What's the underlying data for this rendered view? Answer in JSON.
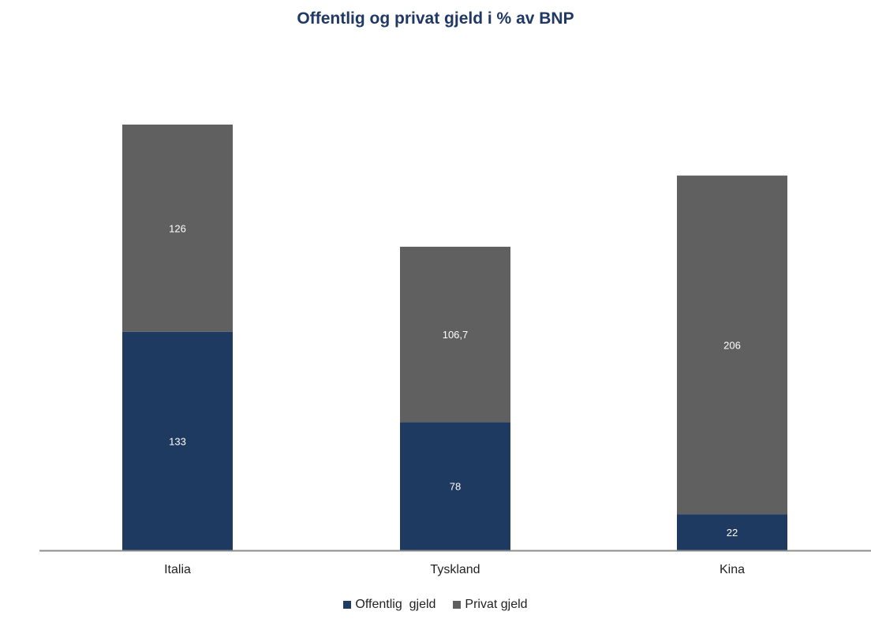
{
  "chart_data": {
    "type": "bar",
    "stacked": true,
    "title": "Offentlig og privat gjeld i % av BNP",
    "categories": [
      "Italia",
      "Tyskland",
      "Kina"
    ],
    "series": [
      {
        "name": "Offentlig  gjeld",
        "values": [
          133,
          78,
          22
        ],
        "labels": [
          "133",
          "78",
          "22"
        ],
        "color": "#1f3a60"
      },
      {
        "name": "Privat gjeld",
        "values": [
          126,
          106.7,
          206
        ],
        "labels": [
          "126",
          "106,7",
          "206"
        ],
        "color": "#606060"
      }
    ],
    "xlabel": "",
    "ylabel": "",
    "ylim": [
      0,
      260
    ],
    "grid": false,
    "legend_position": "bottom"
  }
}
